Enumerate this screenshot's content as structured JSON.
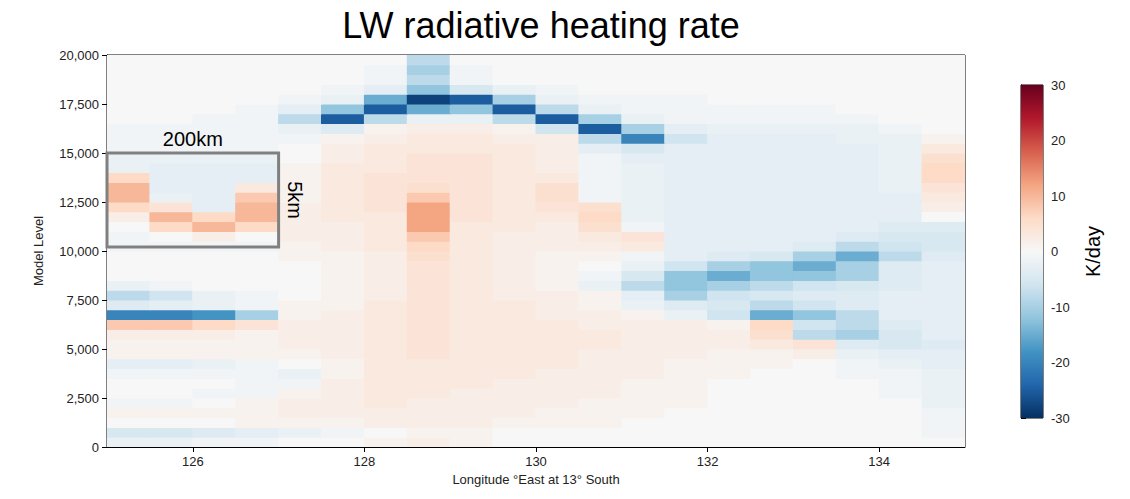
{
  "chart_data": {
    "type": "heatmap",
    "title": "LW radiative heating rate",
    "x_label": "Longitude °East at 13° South",
    "y_label": "Model Level",
    "xlim": [
      125,
      135
    ],
    "xticks": [
      126,
      128,
      130,
      132,
      134
    ],
    "ylim": [
      0,
      20000
    ],
    "yticks": [
      0,
      2500,
      5000,
      7500,
      10000,
      12500,
      15000,
      17500,
      20000
    ],
    "x": [
      125.25,
      125.75,
      126.25,
      126.75,
      127.25,
      127.75,
      128.25,
      128.75,
      129.25,
      129.75,
      130.25,
      130.75,
      131.25,
      131.75,
      132.25,
      132.75,
      133.25,
      133.75,
      134.25,
      134.75
    ],
    "y": [
      250,
      750,
      1250,
      1750,
      2250,
      2750,
      3250,
      3750,
      4250,
      4750,
      5250,
      5750,
      6250,
      6750,
      7250,
      7750,
      8250,
      8750,
      9250,
      9750,
      10250,
      10750,
      11250,
      11750,
      12250,
      12750,
      13250,
      13750,
      14250,
      14750,
      15250,
      15750,
      16250,
      16750,
      17250,
      17750,
      18250,
      18750,
      19250,
      19750
    ],
    "cells": [
      [
        -2,
        -2,
        -1,
        -1,
        0,
        0,
        1,
        2,
        1,
        0,
        0,
        0,
        0,
        0,
        0,
        0,
        0,
        0,
        0,
        0
      ],
      [
        -5,
        -5,
        -4,
        -3,
        -2,
        -1,
        0,
        1,
        1,
        0,
        0,
        0,
        0,
        0,
        0,
        0,
        0,
        0,
        0,
        -1
      ],
      [
        0,
        0,
        0,
        1,
        1,
        1,
        2,
        2,
        2,
        1,
        1,
        1,
        0,
        0,
        0,
        0,
        0,
        0,
        0,
        -1
      ],
      [
        1,
        1,
        1,
        1,
        2,
        2,
        2,
        2,
        2,
        2,
        1,
        1,
        1,
        0,
        0,
        0,
        0,
        0,
        0,
        -1
      ],
      [
        -1,
        -1,
        0,
        1,
        2,
        2,
        3,
        2,
        2,
        2,
        2,
        1,
        1,
        1,
        0,
        0,
        0,
        0,
        0,
        -2
      ],
      [
        0,
        0,
        -1,
        -1,
        1,
        2,
        3,
        3,
        2,
        2,
        2,
        2,
        1,
        1,
        0,
        0,
        0,
        0,
        -1,
        -2
      ],
      [
        0,
        0,
        0,
        -1,
        -1,
        2,
        3,
        3,
        3,
        2,
        2,
        2,
        1,
        1,
        0,
        0,
        0,
        0,
        -1,
        -2
      ],
      [
        -1,
        -1,
        -1,
        -1,
        -2,
        1,
        3,
        3,
        3,
        3,
        2,
        2,
        2,
        1,
        1,
        0,
        0,
        -1,
        -1,
        -2
      ],
      [
        -3,
        -3,
        -2,
        -1,
        0,
        1,
        3,
        3,
        3,
        3,
        3,
        2,
        2,
        1,
        1,
        1,
        0,
        -1,
        -2,
        -3
      ],
      [
        1,
        1,
        1,
        1,
        1,
        2,
        3,
        4,
        3,
        3,
        3,
        2,
        2,
        2,
        1,
        1,
        2,
        -2,
        -3,
        -3
      ],
      [
        1,
        1,
        1,
        1,
        2,
        2,
        3,
        4,
        3,
        3,
        3,
        3,
        2,
        2,
        2,
        3,
        4,
        -4,
        -5,
        -4
      ],
      [
        2,
        2,
        2,
        1,
        2,
        2,
        3,
        4,
        3,
        3,
        3,
        3,
        2,
        2,
        2,
        5,
        -8,
        -10,
        -5,
        -3
      ],
      [
        8,
        8,
        6,
        4,
        2,
        2,
        3,
        4,
        3,
        3,
        3,
        2,
        2,
        2,
        1,
        6,
        -6,
        -8,
        -4,
        -3
      ],
      [
        -20,
        -20,
        -18,
        -10,
        1,
        2,
        3,
        4,
        3,
        3,
        2,
        2,
        1,
        -2,
        -6,
        -15,
        -12,
        -8,
        -3,
        -3
      ],
      [
        -4,
        -3,
        -2,
        -1,
        1,
        1,
        3,
        4,
        3,
        3,
        2,
        1,
        -2,
        -4,
        -5,
        -8,
        -6,
        -4,
        -3,
        -3
      ],
      [
        -8,
        -6,
        -2,
        -1,
        0,
        1,
        2,
        4,
        3,
        2,
        2,
        1,
        -3,
        -10,
        -6,
        -5,
        -4,
        -4,
        -3,
        -3
      ],
      [
        -2,
        -1,
        0,
        0,
        0,
        1,
        2,
        4,
        3,
        2,
        1,
        -2,
        -8,
        -12,
        -10,
        -8,
        -6,
        -5,
        -4,
        -3
      ],
      [
        0,
        0,
        0,
        0,
        0,
        1,
        2,
        4,
        3,
        2,
        1,
        -1,
        -5,
        -12,
        -15,
        -12,
        -12,
        -10,
        -4,
        -3
      ],
      [
        0,
        0,
        0,
        0,
        0,
        1,
        2,
        4,
        3,
        2,
        1,
        0,
        -2,
        -6,
        -10,
        -12,
        -15,
        -10,
        -4,
        -3
      ],
      [
        0,
        0,
        0,
        0,
        1,
        1,
        2,
        5,
        3,
        2,
        1,
        1,
        -1,
        -3,
        -4,
        -5,
        -10,
        -15,
        -8,
        -4
      ],
      [
        -1,
        -1,
        -1,
        -1,
        1,
        2,
        3,
        6,
        3,
        2,
        2,
        2,
        3,
        -3,
        -3,
        -3,
        -4,
        -8,
        -6,
        -5
      ],
      [
        -1,
        0,
        2,
        0,
        2,
        2,
        3,
        8,
        3,
        2,
        2,
        3,
        4,
        -3,
        -3,
        -3,
        -3,
        -4,
        -5,
        -5
      ],
      [
        0,
        6,
        10,
        6,
        2,
        2,
        3,
        12,
        3,
        3,
        2,
        5,
        -1,
        -3,
        -3,
        -3,
        -3,
        -3,
        -4,
        -4
      ],
      [
        2,
        10,
        6,
        10,
        2,
        3,
        3,
        12,
        4,
        3,
        3,
        6,
        -2,
        -3,
        -3,
        -3,
        -3,
        -3,
        -3,
        0
      ],
      [
        6,
        4,
        -3,
        10,
        2,
        3,
        4,
        12,
        4,
        3,
        4,
        5,
        -2,
        -3,
        -3,
        -3,
        -3,
        -3,
        -3,
        2
      ],
      [
        10,
        -2,
        -3,
        8,
        1,
        3,
        4,
        8,
        4,
        3,
        5,
        -1,
        -2,
        -3,
        -3,
        -3,
        -3,
        -3,
        -3,
        3
      ],
      [
        10,
        -3,
        -3,
        3,
        1,
        3,
        4,
        5,
        4,
        3,
        5,
        -1,
        -2,
        -3,
        -3,
        -3,
        -3,
        -3,
        -2,
        4
      ],
      [
        6,
        -3,
        -3,
        -3,
        1,
        3,
        4,
        4,
        4,
        3,
        3,
        -1,
        -2,
        -3,
        -3,
        -3,
        -3,
        -3,
        -2,
        6
      ],
      [
        -2,
        -3,
        -3,
        -3,
        1,
        3,
        3,
        4,
        4,
        3,
        2,
        -1,
        -2,
        -3,
        -3,
        -3,
        -3,
        -3,
        -2,
        6
      ],
      [
        -2,
        -2,
        -2,
        -2,
        0,
        2,
        3,
        4,
        4,
        3,
        2,
        -1,
        -3,
        -3,
        -3,
        -3,
        -3,
        -3,
        -2,
        5
      ],
      [
        -1,
        -1,
        -1,
        -1,
        0,
        2,
        3,
        3,
        3,
        3,
        2,
        -3,
        -5,
        -3,
        -3,
        -3,
        -3,
        -3,
        -2,
        3
      ],
      [
        -1,
        -1,
        -1,
        -1,
        -1,
        1,
        2,
        3,
        3,
        2,
        2,
        -8,
        -20,
        -6,
        -3,
        -3,
        -3,
        -2,
        -2,
        1
      ],
      [
        -1,
        -1,
        -1,
        -1,
        -2,
        -4,
        1,
        2,
        2,
        1,
        -6,
        -25,
        -10,
        -3,
        -2,
        -2,
        -2,
        -2,
        -1,
        0
      ],
      [
        0,
        0,
        -1,
        -1,
        -8,
        -25,
        -8,
        -2,
        -2,
        -8,
        -25,
        -10,
        -2,
        -1,
        -1,
        -1,
        -1,
        -1,
        0,
        0
      ],
      [
        0,
        0,
        0,
        -1,
        -3,
        -12,
        -25,
        -15,
        -12,
        -25,
        -8,
        -2,
        -1,
        -1,
        -1,
        -1,
        -1,
        0,
        0,
        0
      ],
      [
        0,
        0,
        0,
        0,
        -1,
        -2,
        -15,
        -28,
        -25,
        -10,
        -2,
        -1,
        -1,
        -1,
        0,
        0,
        0,
        0,
        0,
        0
      ],
      [
        0,
        0,
        0,
        0,
        0,
        -1,
        -3,
        -12,
        -5,
        -2,
        -1,
        0,
        0,
        0,
        0,
        0,
        0,
        0,
        0,
        0
      ],
      [
        0,
        0,
        0,
        0,
        0,
        0,
        -1,
        -8,
        -1,
        0,
        0,
        0,
        0,
        0,
        0,
        0,
        0,
        0,
        0,
        0
      ],
      [
        0,
        0,
        0,
        0,
        0,
        0,
        -1,
        -10,
        -1,
        0,
        0,
        0,
        0,
        0,
        0,
        0,
        0,
        0,
        0,
        0
      ],
      [
        0,
        0,
        0,
        0,
        0,
        0,
        0,
        -8,
        0,
        0,
        0,
        0,
        0,
        0,
        0,
        0,
        0,
        0,
        0,
        0
      ]
    ],
    "colorbar": {
      "label": "K/day",
      "range": [
        -30,
        30
      ],
      "ticks": [
        -30,
        -20,
        -10,
        0,
        10,
        20,
        30
      ]
    },
    "annotations": [
      {
        "box": {
          "xlim": [
            125,
            127
          ],
          "ylim": [
            10200,
            15000
          ]
        },
        "top_label": "200km",
        "side_label": "5km"
      }
    ]
  }
}
